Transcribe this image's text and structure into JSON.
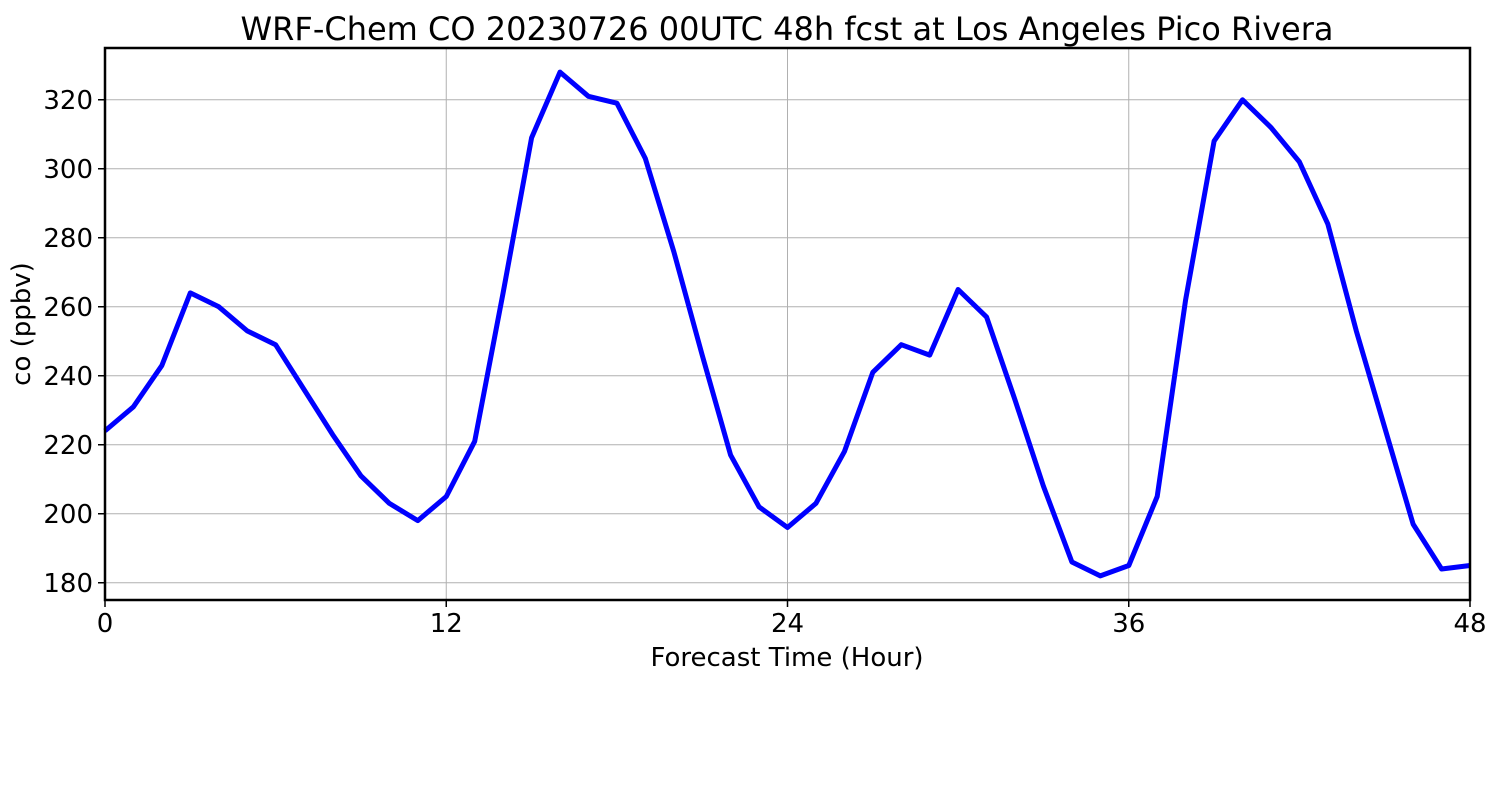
{
  "chart_data": {
    "type": "line",
    "title": "WRF-Chem CO  20230726 00UTC 48h fcst at Los Angeles Pico Rivera",
    "xlabel": "Forecast Time (Hour)",
    "ylabel": "co  (ppbv)",
    "xlim": [
      0,
      48
    ],
    "ylim": [
      175,
      335
    ],
    "xticks": [
      0,
      12,
      24,
      36,
      48
    ],
    "yticks": [
      180,
      200,
      220,
      240,
      260,
      280,
      300,
      320
    ],
    "grid": true,
    "series": [
      {
        "color": "#0000ff",
        "x": [
          0,
          1,
          2,
          3,
          4,
          5,
          6,
          7,
          8,
          9,
          10,
          11,
          12,
          13,
          14,
          15,
          16,
          17,
          18,
          19,
          20,
          21,
          22,
          23,
          24,
          25,
          26,
          27,
          28,
          29,
          30,
          31,
          32,
          33,
          34,
          35,
          36,
          37,
          38,
          39,
          40,
          41,
          42,
          43,
          44,
          45,
          46,
          47,
          48
        ],
        "values": [
          224,
          231,
          243,
          264,
          260,
          253,
          249,
          236,
          223,
          211,
          203,
          198,
          205,
          221,
          264,
          309,
          328,
          321,
          319,
          303,
          276,
          246,
          217,
          202,
          196,
          203,
          218,
          241,
          249,
          246,
          265,
          257,
          233,
          208,
          186,
          182,
          185,
          205,
          262,
          308,
          320,
          312,
          302,
          284,
          253,
          225,
          197,
          184,
          185
        ]
      }
    ]
  }
}
